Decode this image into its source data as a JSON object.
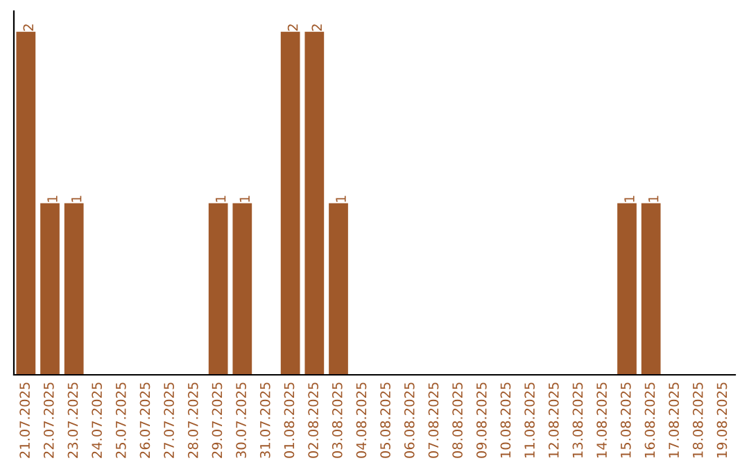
{
  "chart_data": {
    "type": "bar",
    "categories": [
      "21.07.2025",
      "22.07.2025",
      "23.07.2025",
      "24.07.2025",
      "25.07.2025",
      "26.07.2025",
      "27.07.2025",
      "28.07.2025",
      "29.07.2025",
      "30.07.2025",
      "31.07.2025",
      "01.08.2025",
      "02.08.2025",
      "03.08.2025",
      "04.08.2025",
      "05.08.2025",
      "06.08.2025",
      "07.08.2025",
      "08.08.2025",
      "09.08.2025",
      "10.08.2025",
      "11.08.2025",
      "12.08.2025",
      "13.08.2025",
      "14.08.2025",
      "15.08.2025",
      "16.08.2025",
      "17.08.2025",
      "18.08.2025",
      "19.08.2025"
    ],
    "values": [
      2,
      1,
      1,
      0,
      0,
      0,
      0,
      0,
      1,
      1,
      0,
      2,
      2,
      1,
      0,
      0,
      0,
      0,
      0,
      0,
      0,
      0,
      0,
      0,
      0,
      1,
      1,
      0,
      0,
      0
    ],
    "value_labels": [
      "2",
      "1",
      "1",
      null,
      null,
      null,
      null,
      null,
      "1",
      "1",
      null,
      "2",
      "2",
      "1",
      null,
      null,
      null,
      null,
      null,
      null,
      null,
      null,
      null,
      null,
      null,
      "1",
      "1",
      null,
      null,
      null
    ],
    "color": "#a0592a",
    "grid": false,
    "legend": false,
    "tick_labels": "x"
  }
}
